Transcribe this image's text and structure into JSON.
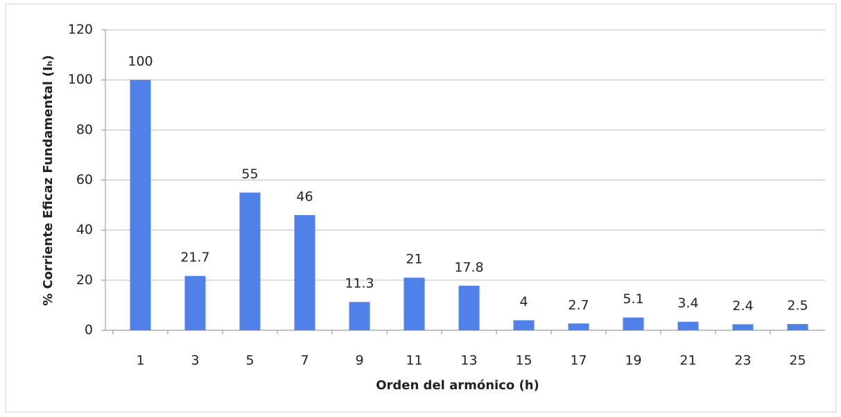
{
  "chart_data": {
    "type": "bar",
    "xlabel": "Orden del armónico (h)",
    "ylabel": "% Corriente Eficaz Fundamental (Iₕ)",
    "categories": [
      "1",
      "3",
      "5",
      "7",
      "9",
      "11",
      "13",
      "15",
      "17",
      "19",
      "21",
      "23",
      "25"
    ],
    "values": [
      100,
      21.7,
      55,
      46,
      11.3,
      21,
      17.8,
      4,
      2.7,
      5.1,
      3.4,
      2.4,
      2.5
    ],
    "color": "#4f81e8",
    "ylim": [
      0,
      120
    ],
    "yticks": [
      0,
      20,
      40,
      60,
      80,
      100,
      120
    ],
    "grid": true
  }
}
